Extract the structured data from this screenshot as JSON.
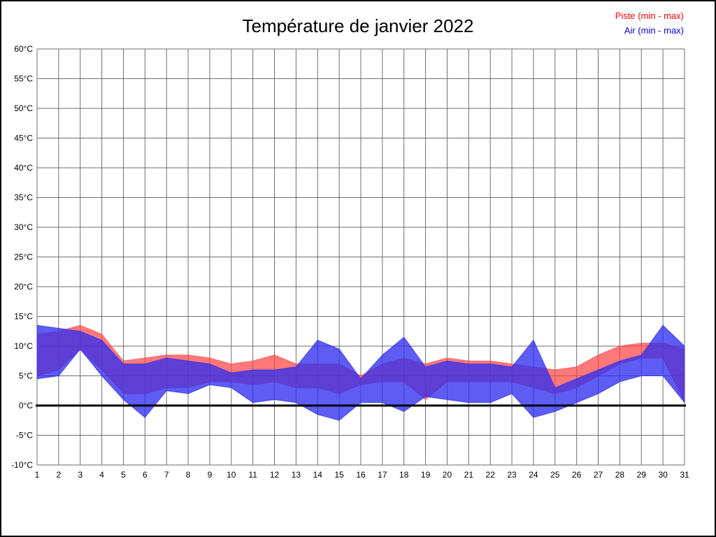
{
  "chart_data": {
    "type": "area",
    "title": "Température de janvier 2022",
    "legend": [
      {
        "label": "Piste (min - max)",
        "color": "#ff0000"
      },
      {
        "label": "Air (min - max)",
        "color": "#0000ff"
      }
    ],
    "x": [
      1,
      2,
      3,
      4,
      5,
      6,
      7,
      8,
      9,
      10,
      11,
      12,
      13,
      14,
      15,
      16,
      17,
      18,
      19,
      20,
      21,
      22,
      23,
      24,
      25,
      26,
      27,
      28,
      29,
      30,
      31
    ],
    "series": [
      {
        "name": "Piste",
        "color": "#ff4040",
        "opacity": 0.7,
        "min": [
          5,
          6,
          9.5,
          6,
          2,
          2,
          3,
          3,
          4,
          4,
          3.5,
          4,
          3,
          3,
          2,
          3.5,
          4,
          4,
          1,
          4,
          4,
          4,
          4,
          3,
          2,
          3,
          5,
          7,
          8,
          8,
          0.5
        ],
        "max": [
          12,
          12.5,
          13.5,
          12,
          7.5,
          8,
          8.5,
          8.5,
          8,
          7,
          7.5,
          8.5,
          7,
          7,
          7,
          5,
          7,
          8,
          7,
          8,
          7.5,
          7.5,
          7,
          6.5,
          6,
          6.5,
          8.5,
          10,
          10.5,
          10.5,
          9.5
        ]
      },
      {
        "name": "Air",
        "color": "#3030f0",
        "opacity": 0.78,
        "min": [
          4.5,
          5,
          9.5,
          5,
          1,
          -2,
          2.5,
          2,
          3.5,
          3,
          0.5,
          1,
          0.5,
          -1.5,
          -2.5,
          0.5,
          0.5,
          -1,
          1.5,
          1,
          0.5,
          0.5,
          2,
          -2,
          -1,
          0.5,
          2,
          4,
          5,
          5,
          0.5
        ],
        "max": [
          13.5,
          13,
          12.5,
          11,
          7,
          7,
          8,
          7.5,
          7,
          5.5,
          6,
          6,
          6.5,
          11,
          9.5,
          4.5,
          8.5,
          11.5,
          6.5,
          7.5,
          7,
          7,
          6.5,
          11,
          3,
          4.5,
          6,
          7.5,
          8.5,
          13.5,
          10
        ]
      }
    ],
    "ylim": [
      -10,
      60
    ],
    "ytick_step": 5,
    "ytick_suffix": "°C",
    "xlabel": "",
    "ylabel": "",
    "grid": true,
    "zero_line": true,
    "legend_position": "top-right",
    "grid_color": "#6e6e6e",
    "zero_line_color": "#000000"
  }
}
